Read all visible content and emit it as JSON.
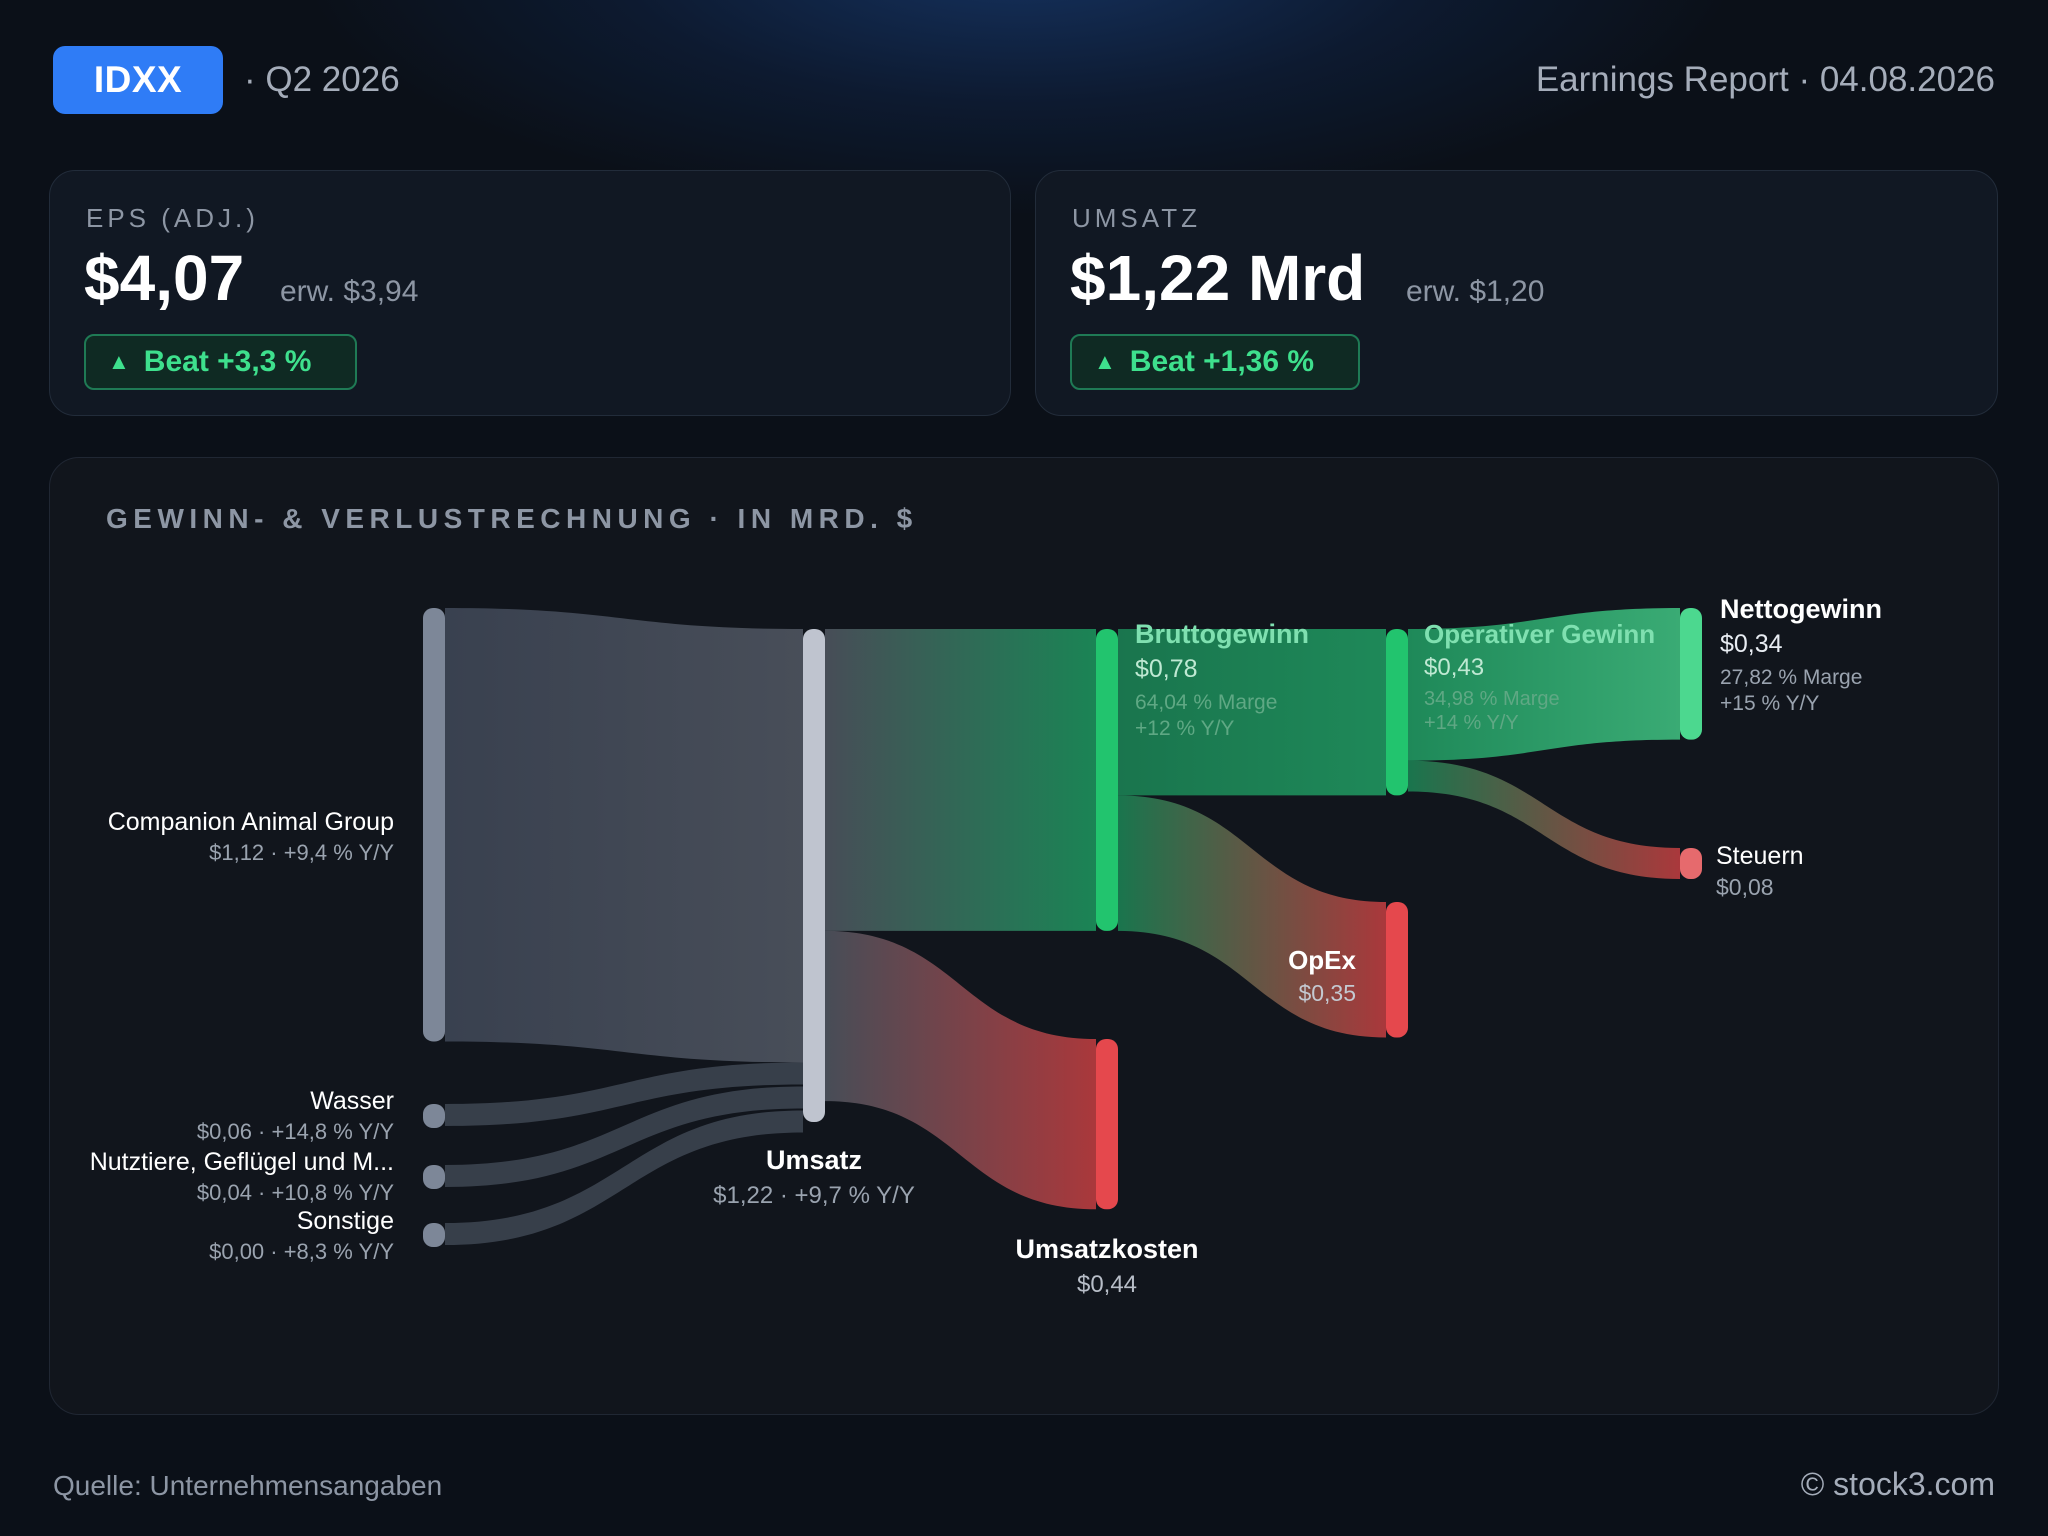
{
  "header": {
    "ticker": "IDXX",
    "quarter": "· Q2 2026",
    "report": "Earnings Report · 04.08.2026"
  },
  "cards": {
    "eps": {
      "label": "EPS (ADJ.)",
      "value": "$4,07",
      "expected": "erw. $3,94",
      "beat": "Beat +3,3 %"
    },
    "revenue": {
      "label": "UMSATZ",
      "value": "$1,22 Mrd",
      "expected": "erw. $1,20",
      "beat": "Beat +1,36 %"
    }
  },
  "panel": {
    "title": "GEWINN- & VERLUSTRECHNUNG · IN MRD. $"
  },
  "footer": {
    "source": "Quelle: Unternehmensangaben",
    "copyright": "© stock3.com"
  },
  "colors": {
    "accent": "#2f7cf6",
    "positive": "#22c46e",
    "negative": "#e5484d",
    "neutral": "#bfc4cf",
    "source_node": "#7d8798"
  },
  "chart_data": {
    "type": "sankey",
    "title": "GEWINN- & VERLUSTRECHNUNG · IN MRD. $",
    "unit": "Mrd. $",
    "nodes": [
      {
        "id": "cag",
        "name": "Companion Animal Group",
        "value": 1.12,
        "detail": "$1,12 · +9,4 % Y/Y"
      },
      {
        "id": "wasser",
        "name": "Wasser",
        "value": 0.06,
        "detail": "$0,06 · +14,8 % Y/Y"
      },
      {
        "id": "nutz",
        "name": "Nutztiere, Geflügel und M...",
        "value": 0.04,
        "detail": "$0,04 · +10,8 % Y/Y"
      },
      {
        "id": "sonst",
        "name": "Sonstige",
        "value": 0.0,
        "detail": "$0,00 · +8,3 % Y/Y"
      },
      {
        "id": "umsatz",
        "name": "Umsatz",
        "value": 1.22,
        "detail": "$1,22 · +9,7 % Y/Y"
      },
      {
        "id": "brutto",
        "name": "Bruttogewinn",
        "value": 0.78,
        "amount": "$0,78",
        "margin": "64,04 % Marge",
        "yoy": "+12 % Y/Y"
      },
      {
        "id": "kosten",
        "name": "Umsatzkosten",
        "value": 0.44,
        "amount": "$0,44"
      },
      {
        "id": "opgew",
        "name": "Operativer Gewinn",
        "value": 0.43,
        "amount": "$0,43",
        "margin": "34,98 % Marge",
        "yoy": "+14 % Y/Y"
      },
      {
        "id": "opex",
        "name": "OpEx",
        "value": 0.35,
        "amount": "$0,35"
      },
      {
        "id": "netto",
        "name": "Nettogewinn",
        "value": 0.34,
        "amount": "$0,34",
        "margin": "27,82 % Marge",
        "yoy": "+15 % Y/Y"
      },
      {
        "id": "steuern",
        "name": "Steuern",
        "value": 0.08,
        "amount": "$0,08"
      }
    ],
    "links": [
      {
        "source": "cag",
        "target": "umsatz",
        "value": 1.12
      },
      {
        "source": "wasser",
        "target": "umsatz",
        "value": 0.06
      },
      {
        "source": "nutz",
        "target": "umsatz",
        "value": 0.04
      },
      {
        "source": "sonst",
        "target": "umsatz",
        "value": 0.0
      },
      {
        "source": "umsatz",
        "target": "brutto",
        "value": 0.78
      },
      {
        "source": "umsatz",
        "target": "kosten",
        "value": 0.44
      },
      {
        "source": "brutto",
        "target": "opgew",
        "value": 0.43
      },
      {
        "source": "brutto",
        "target": "opex",
        "value": 0.35
      },
      {
        "source": "opgew",
        "target": "netto",
        "value": 0.34
      },
      {
        "source": "opgew",
        "target": "steuern",
        "value": 0.08
      }
    ]
  }
}
